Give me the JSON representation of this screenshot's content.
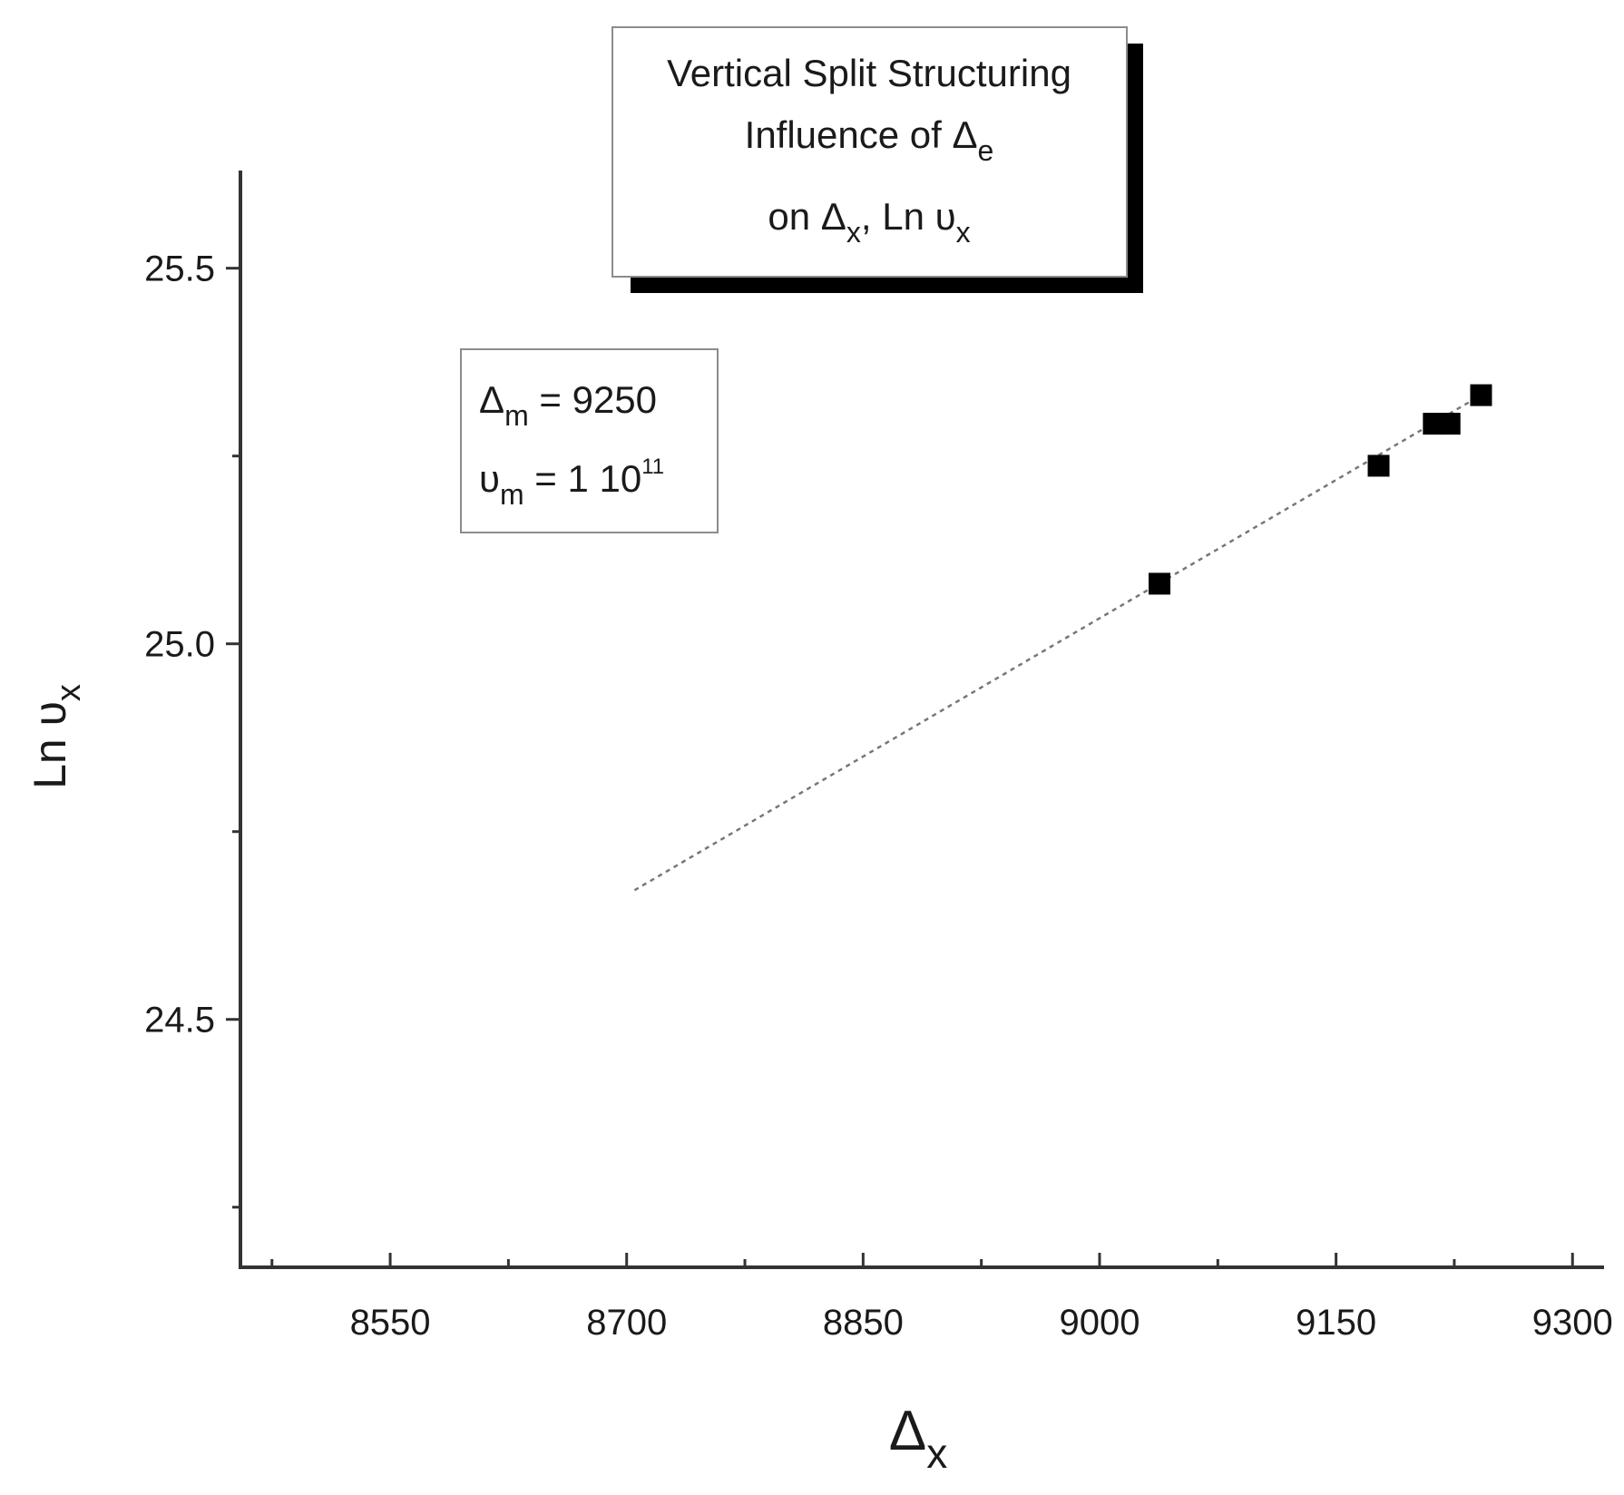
{
  "chart_data": {
    "type": "scatter",
    "title": {
      "line1": "Vertical Split Structuring",
      "line2_main": "Influence of Δ",
      "line2_sub": "e",
      "line3_a": "on Δ",
      "line3_sub1": "x",
      "line3_b": ", Ln υ",
      "line3_sub2": "x"
    },
    "xlabel": {
      "main": "Δ",
      "sub": "x"
    },
    "ylabel": {
      "main": "Ln υ",
      "sub": "x"
    },
    "xlim": [
      8455,
      9320
    ],
    "ylim": [
      24.17,
      25.63
    ],
    "x_ticks": [
      8550,
      8700,
      8850,
      9000,
      9150,
      9300
    ],
    "x_tick_labels": [
      "8550",
      "8700",
      "8850",
      "9000",
      "9150",
      "9300"
    ],
    "x_minor_ticks": [
      8475,
      8625,
      8775,
      8925,
      9075,
      9225
    ],
    "y_ticks": [
      24.5,
      25.0,
      25.5
    ],
    "y_tick_labels": [
      "24.5",
      "25.0",
      "25.5"
    ],
    "y_minor_ticks": [
      24.25,
      24.75,
      25.25
    ],
    "series": [
      {
        "marker": "square",
        "color": "#000000",
        "points": [
          {
            "x": 9038,
            "y": 25.08
          },
          {
            "x": 9177,
            "y": 25.237
          },
          {
            "x": 9212,
            "y": 25.293
          },
          {
            "x": 9222,
            "y": 25.293
          },
          {
            "x": 9242,
            "y": 25.331
          }
        ]
      }
    ],
    "fit_line": {
      "style": "dotted",
      "color": "#777777",
      "x": [
        8705,
        9242
      ],
      "y": [
        24.672,
        25.331
      ]
    },
    "parameters": {
      "line1_main": "Δ",
      "line1_sub": "m",
      "line1_value": " = 9250",
      "line2_main": "υ",
      "line2_sub": "m",
      "line2_value": " = 1 10",
      "line2_sup": "11"
    },
    "grid": false,
    "legend": "none"
  }
}
